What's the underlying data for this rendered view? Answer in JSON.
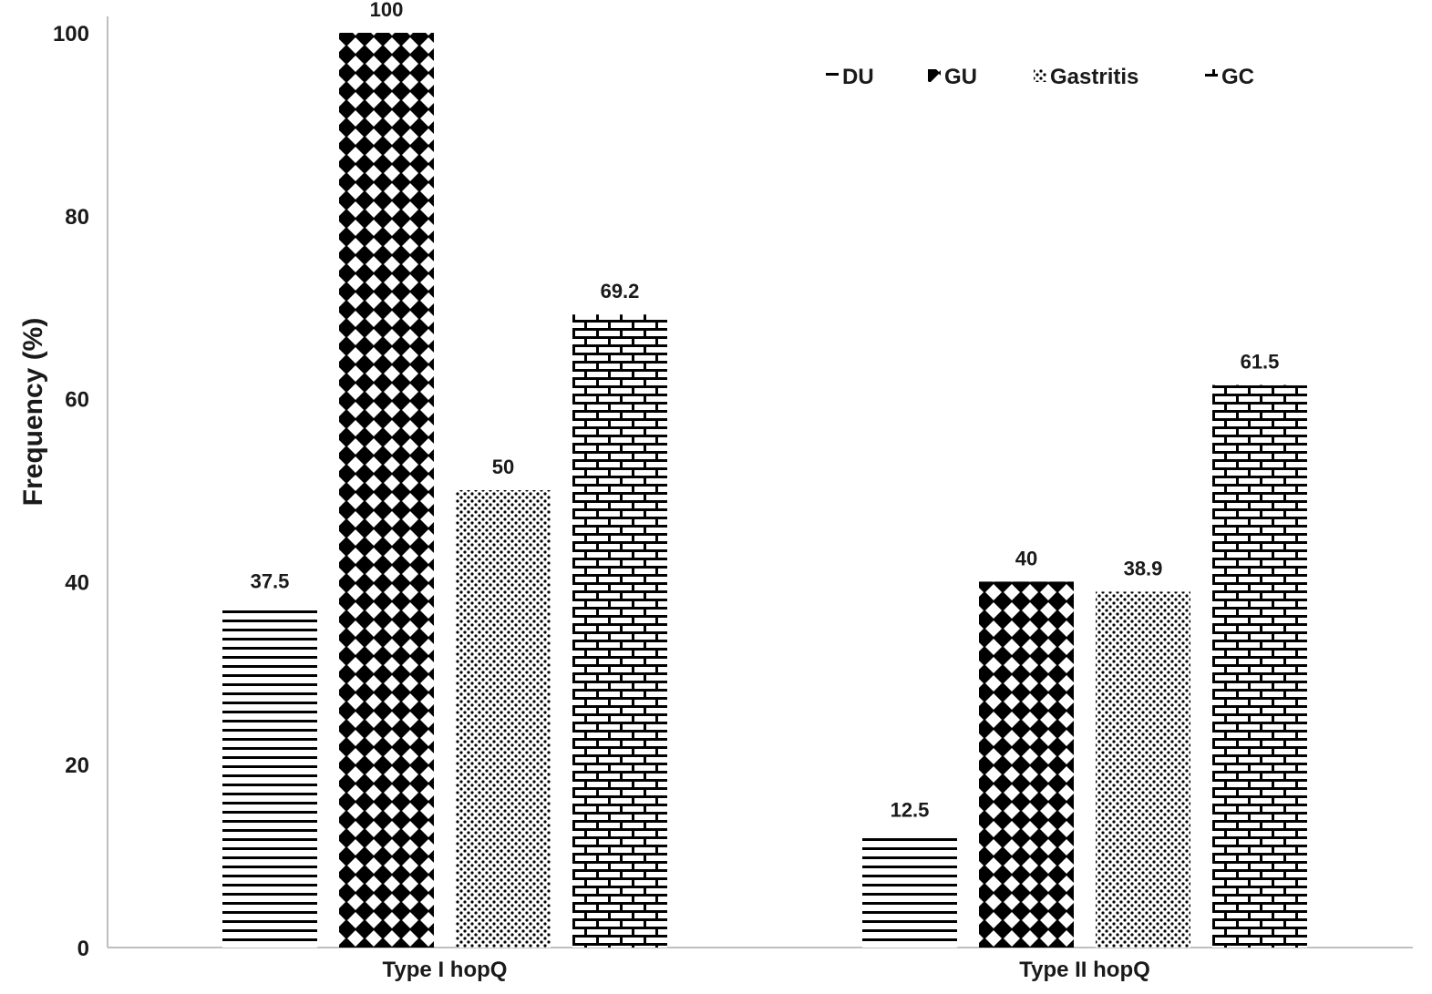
{
  "chart_data": {
    "type": "bar",
    "ylabel": "Frequency (%)",
    "xlabel": "",
    "ylim": [
      0,
      100
    ],
    "yticks": [
      0,
      20,
      40,
      60,
      80,
      100
    ],
    "categories": [
      "Type I hopQ",
      "Type II hopQ"
    ],
    "series": [
      {
        "name": "DU",
        "values": [
          37.5,
          12.5
        ],
        "pattern": "horizontal-lines",
        "value_labels": [
          "37.5",
          "12.5"
        ]
      },
      {
        "name": "GU",
        "values": [
          100,
          40
        ],
        "pattern": "diamond-checker",
        "value_labels": [
          "100",
          "40"
        ]
      },
      {
        "name": "Gastritis",
        "values": [
          50,
          38.9
        ],
        "pattern": "dots",
        "value_labels": [
          "50",
          "38.9"
        ]
      },
      {
        "name": "GC",
        "values": [
          69.2,
          61.5
        ],
        "pattern": "brick",
        "value_labels": [
          "69.2",
          "61.5"
        ]
      }
    ],
    "legend_position": "top-right",
    "grid": false,
    "colors": {
      "ink": "#000000",
      "axis": "#bfbfbf",
      "background": "#ffffff"
    }
  }
}
